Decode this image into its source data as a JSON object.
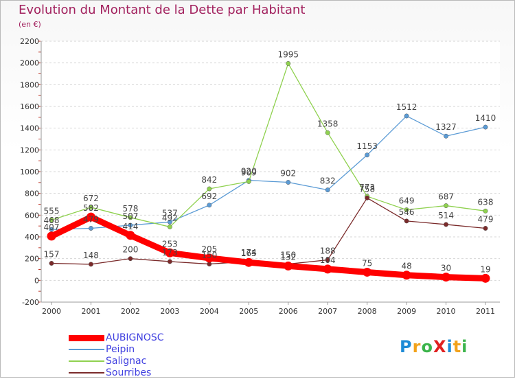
{
  "header": {
    "title": "Evolution du Montant de la Dette par Habitant",
    "subtitle": "(en €)"
  },
  "logo": {
    "text": "ProXiti",
    "letter_colors": [
      "#1e8bd6",
      "#f2a21b",
      "#3cb44b",
      "#e02020",
      "#1e8bd6",
      "#f2a21b",
      "#3cb44b"
    ]
  },
  "chart_data": {
    "type": "line",
    "title": "Evolution du Montant de la Dette par Habitant",
    "subtitle": "(en €)",
    "xlabel": "",
    "ylabel": "",
    "x": [
      "2000",
      "2001",
      "2002",
      "2003",
      "2004",
      "2005",
      "2006",
      "2007",
      "2008",
      "2009",
      "2010",
      "2011"
    ],
    "ylim": [
      -200,
      2200
    ],
    "yticks": [
      -200,
      0,
      200,
      400,
      600,
      800,
      1000,
      1200,
      1400,
      1600,
      1800,
      2000,
      2200
    ],
    "grid": "horizontal dashed",
    "legend_position": "bottom-left",
    "series": [
      {
        "name": "AUBIGNOSC",
        "color": "#ff0000",
        "emphasis": true,
        "values": [
          407,
          582,
          414,
          253,
          205,
          165,
          132,
          104,
          75,
          48,
          30,
          19
        ],
        "labels": [
          "407",
          "582",
          "414",
          "253",
          "205",
          "165",
          "132",
          "104",
          "75",
          "48",
          "30",
          "19"
        ]
      },
      {
        "name": "Peipin",
        "color": "#5b9bd5",
        "values": [
          468,
          479,
          507,
          537,
          692,
          920,
          902,
          832,
          1153,
          1512,
          1327,
          1410
        ],
        "labels": [
          "468",
          "479",
          "507",
          "537",
          "692",
          "920",
          "902",
          "832",
          "1153",
          "1512",
          "1327",
          "1410"
        ]
      },
      {
        "name": "Salignac",
        "color": "#8fd14f",
        "values": [
          555,
          672,
          578,
          492,
          842,
          909,
          1995,
          1358,
          773,
          649,
          687,
          638
        ],
        "labels": [
          "555",
          "672",
          "578",
          "492",
          "842",
          "909",
          "1995",
          "1358",
          "773",
          "649",
          "687",
          "638"
        ]
      },
      {
        "name": "Sourribes",
        "color": "#7a2a2a",
        "values": [
          157,
          148,
          200,
          173,
          150,
          174,
          150,
          188,
          758,
          546,
          514,
          479
        ],
        "labels": [
          "157",
          "148",
          "200",
          "173",
          "150",
          "174",
          "150",
          "188",
          "758",
          "546",
          "514",
          "479"
        ]
      }
    ]
  }
}
